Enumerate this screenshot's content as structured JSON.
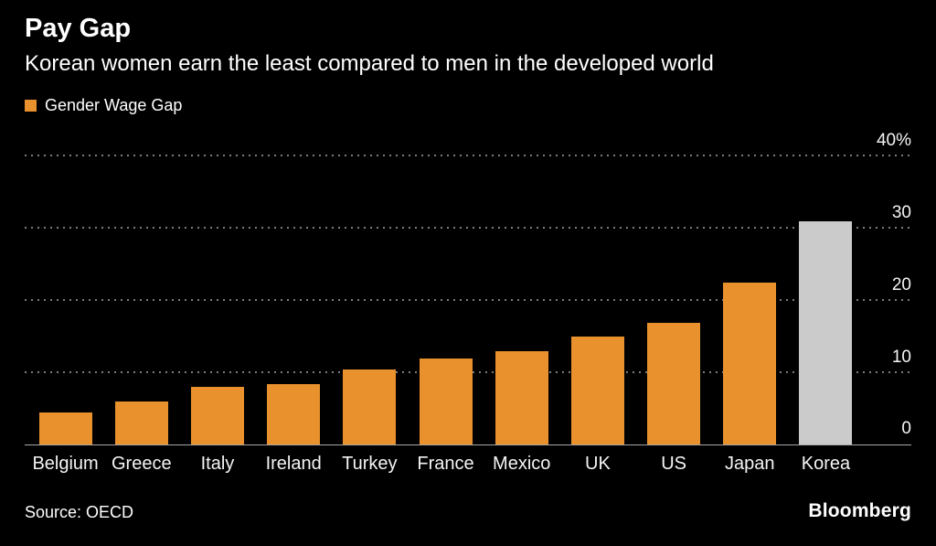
{
  "header": {
    "title": "Pay Gap",
    "subtitle": "Korean women earn the least compared to men in the developed world"
  },
  "legend": {
    "label": "Gender Wage Gap",
    "color": "#E8912D"
  },
  "chart_data": {
    "type": "bar",
    "title": "Pay Gap",
    "subtitle": "Korean women earn the least compared to men in the developed world",
    "categories": [
      "Belgium",
      "Greece",
      "Italy",
      "Ireland",
      "Turkey",
      "France",
      "Mexico",
      "UK",
      "US",
      "Japan",
      "Korea"
    ],
    "values": [
      4.5,
      6,
      8,
      8.5,
      10.5,
      12,
      13,
      15,
      17,
      22.5,
      31
    ],
    "colors": [
      "#E8912D",
      "#E8912D",
      "#E8912D",
      "#E8912D",
      "#E8912D",
      "#E8912D",
      "#E8912D",
      "#E8912D",
      "#E8912D",
      "#E8912D",
      "#CBCBCB"
    ],
    "highlight": {
      "category": "Korea",
      "color": "#CBCBCB"
    },
    "legend": [
      "Gender Wage Gap"
    ],
    "legend_position": "top-left",
    "xlabel": "",
    "ylabel": "",
    "ylim": [
      0,
      40
    ],
    "yticks": [
      {
        "value": 0,
        "label": "0"
      },
      {
        "value": 10,
        "label": "10"
      },
      {
        "value": 20,
        "label": "20"
      },
      {
        "value": 30,
        "label": "30"
      },
      {
        "value": 40,
        "label": "40%"
      }
    ],
    "grid": "dotted-horizontal",
    "background": "#000000"
  },
  "footer": {
    "source": "Source: OECD",
    "brand": "Bloomberg"
  }
}
